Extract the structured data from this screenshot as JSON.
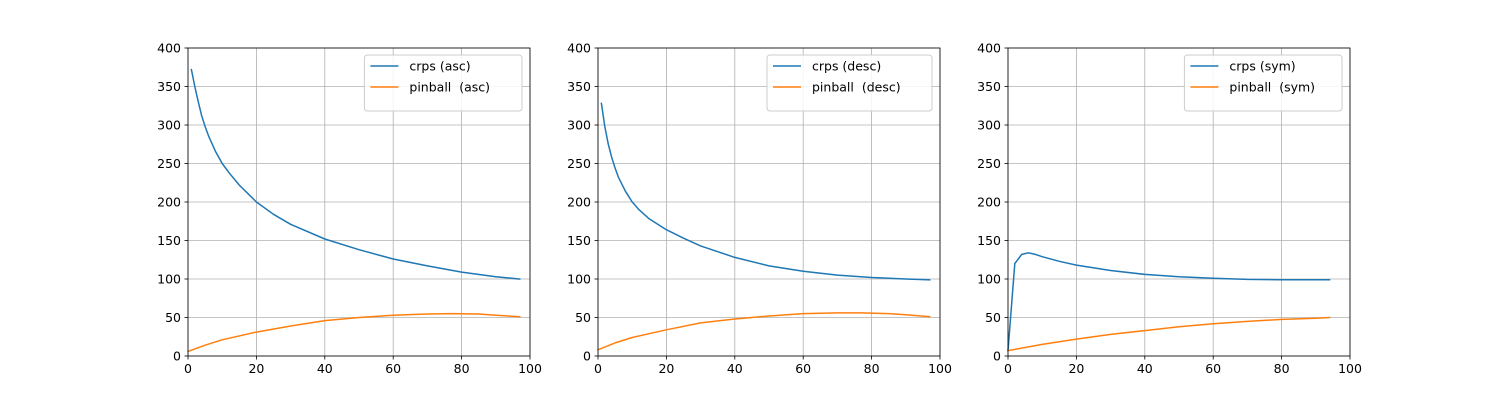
{
  "colors": {
    "series1": "#1f77b4",
    "series2": "#ff7f0e",
    "grid": "#b0b0b0",
    "axis": "#000000",
    "legend_border": "#cccccc"
  },
  "chart_data": [
    {
      "type": "line",
      "title": "",
      "xlabel": "",
      "ylabel": "",
      "xlim": [
        0,
        100
      ],
      "ylim": [
        0,
        400
      ],
      "x_ticks": [
        "0",
        "20",
        "40",
        "60",
        "80",
        "100"
      ],
      "y_ticks": [
        "0",
        "50",
        "100",
        "150",
        "200",
        "250",
        "300",
        "350",
        "400"
      ],
      "grid": true,
      "legend_position": "top-right",
      "series": [
        {
          "name": "crps (asc)",
          "x": [
            1,
            2,
            3,
            4,
            5,
            6,
            8,
            10,
            12,
            15,
            20,
            25,
            30,
            40,
            50,
            60,
            70,
            80,
            90,
            97
          ],
          "y": [
            372,
            350,
            330,
            312,
            298,
            286,
            266,
            250,
            238,
            222,
            200,
            184,
            171,
            152,
            138,
            126,
            117,
            109,
            103,
            100
          ]
        },
        {
          "name": "pinball  (asc)",
          "x": [
            0,
            5,
            10,
            20,
            30,
            40,
            50,
            60,
            70,
            77,
            85,
            90,
            97
          ],
          "y": [
            6,
            14,
            21,
            31,
            39,
            46,
            50,
            53,
            54.5,
            55,
            54.5,
            53,
            51
          ]
        }
      ]
    },
    {
      "type": "line",
      "title": "",
      "xlabel": "",
      "ylabel": "",
      "xlim": [
        0,
        100
      ],
      "ylim": [
        0,
        400
      ],
      "x_ticks": [
        "0",
        "20",
        "40",
        "60",
        "80",
        "100"
      ],
      "y_ticks": [
        "0",
        "50",
        "100",
        "150",
        "200",
        "250",
        "300",
        "350",
        "400"
      ],
      "grid": true,
      "legend_position": "top-right",
      "series": [
        {
          "name": "crps (desc)",
          "x": [
            1,
            2,
            3,
            4,
            5,
            6,
            8,
            10,
            12,
            15,
            20,
            25,
            30,
            40,
            50,
            60,
            70,
            80,
            90,
            97
          ],
          "y": [
            328,
            298,
            275,
            258,
            244,
            232,
            214,
            200,
            190,
            178,
            164,
            153,
            143,
            128,
            117,
            110,
            105,
            102,
            100,
            99
          ]
        },
        {
          "name": "pinball  (desc)",
          "x": [
            0,
            5,
            10,
            20,
            30,
            40,
            50,
            60,
            70,
            77,
            85,
            90,
            97
          ],
          "y": [
            8,
            17,
            24,
            34,
            43,
            48,
            52,
            55,
            56,
            56,
            55,
            53.5,
            51
          ]
        }
      ]
    },
    {
      "type": "line",
      "title": "",
      "xlabel": "",
      "ylabel": "",
      "xlim": [
        0,
        100
      ],
      "ylim": [
        0,
        400
      ],
      "x_ticks": [
        "0",
        "20",
        "40",
        "60",
        "80",
        "100"
      ],
      "y_ticks": [
        "0",
        "50",
        "100",
        "150",
        "200",
        "250",
        "300",
        "350",
        "400"
      ],
      "grid": true,
      "legend_position": "top-right",
      "series": [
        {
          "name": "crps (sym)",
          "x": [
            0,
            2,
            4,
            6,
            8,
            10,
            15,
            20,
            30,
            40,
            50,
            60,
            70,
            80,
            90,
            94
          ],
          "y": [
            7,
            120,
            132,
            134,
            132,
            129,
            123,
            118,
            111,
            106,
            103,
            101,
            99.5,
            99,
            99,
            99
          ]
        },
        {
          "name": "pinball  (sym)",
          "x": [
            0,
            5,
            10,
            20,
            30,
            40,
            50,
            60,
            70,
            80,
            90,
            94
          ],
          "y": [
            7,
            11,
            15,
            22,
            28,
            33,
            38,
            42,
            45,
            47.5,
            49,
            50
          ]
        }
      ]
    }
  ]
}
